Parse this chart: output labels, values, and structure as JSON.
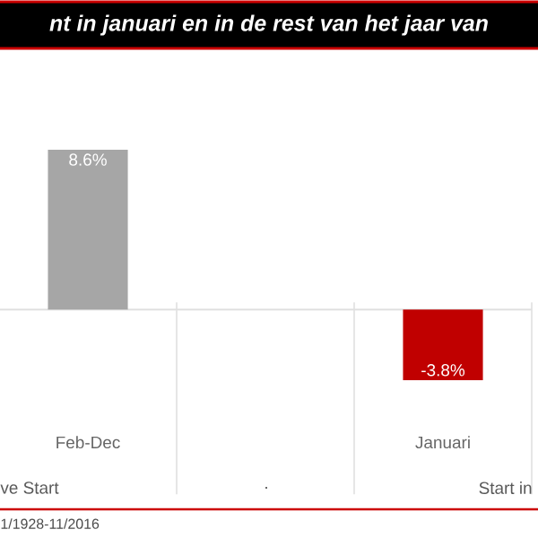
{
  "chart_data": {
    "type": "bar",
    "title": "nt in januari en in de rest van het jaar van",
    "categories": [
      "Feb-Dec",
      null,
      "Januari"
    ],
    "values": [
      8.6,
      null,
      -3.8
    ],
    "colors": [
      "#a6a6a6",
      "#a6a6a6",
      "#c00000"
    ],
    "value_labels": [
      "8.6%",
      null,
      "-3.8%"
    ],
    "annotations": [
      "ve Start",
      ".",
      "Start in",
      "1/1928-11/2016"
    ]
  }
}
